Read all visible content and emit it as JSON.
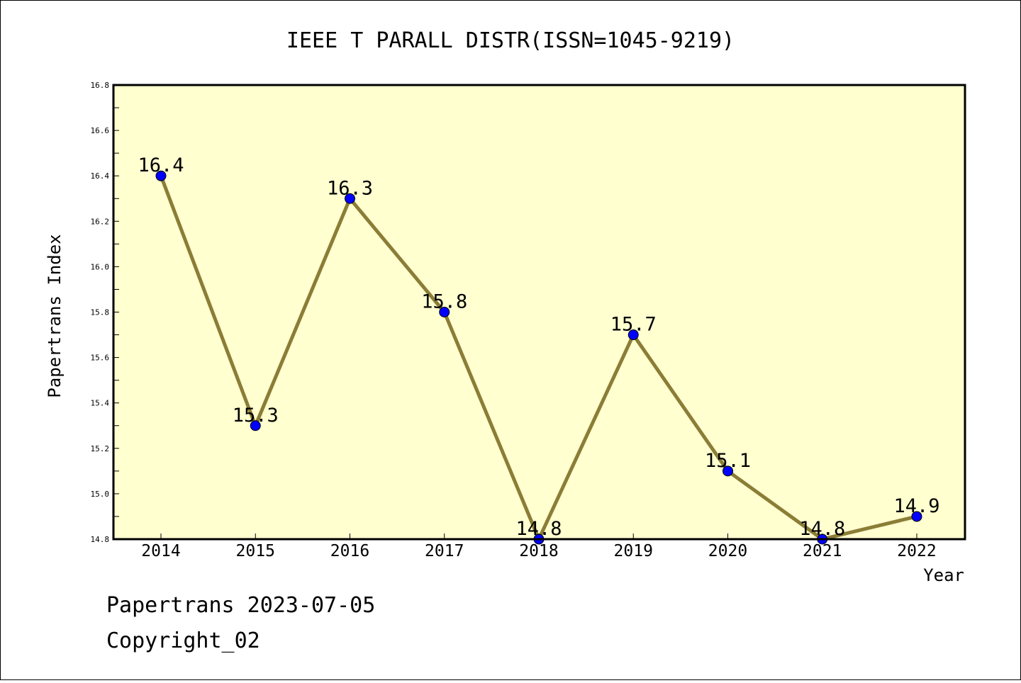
{
  "chart_data": {
    "type": "line",
    "title": "IEEE T PARALL DISTR(ISSN=1045-9219)",
    "xlabel": "Year",
    "ylabel": "Papertrans Index",
    "categories": [
      "2014",
      "2015",
      "2016",
      "2017",
      "2018",
      "2019",
      "2020",
      "2021",
      "2022"
    ],
    "values": [
      16.4,
      15.3,
      16.3,
      15.8,
      14.8,
      15.7,
      15.1,
      14.8,
      14.9
    ],
    "data_labels": [
      "16.4",
      "15.3",
      "16.3",
      "15.8",
      "14.8",
      "15.7",
      "15.1",
      "14.8",
      "14.9"
    ],
    "ylim": [
      14.8,
      16.8
    ],
    "yticks": [
      "14.8",
      "15.0",
      "15.2",
      "15.4",
      "15.6",
      "15.8",
      "16.0",
      "16.2",
      "16.4",
      "16.6",
      "16.8"
    ],
    "grid": false,
    "legend": "none",
    "colors": {
      "plot_background": "#FFFFD0",
      "line": "#8B7D36",
      "marker": "#0000FF",
      "frame": "#000000"
    }
  },
  "footer": {
    "line1": "Papertrans 2023-07-05",
    "line2": "Copyright_02"
  }
}
